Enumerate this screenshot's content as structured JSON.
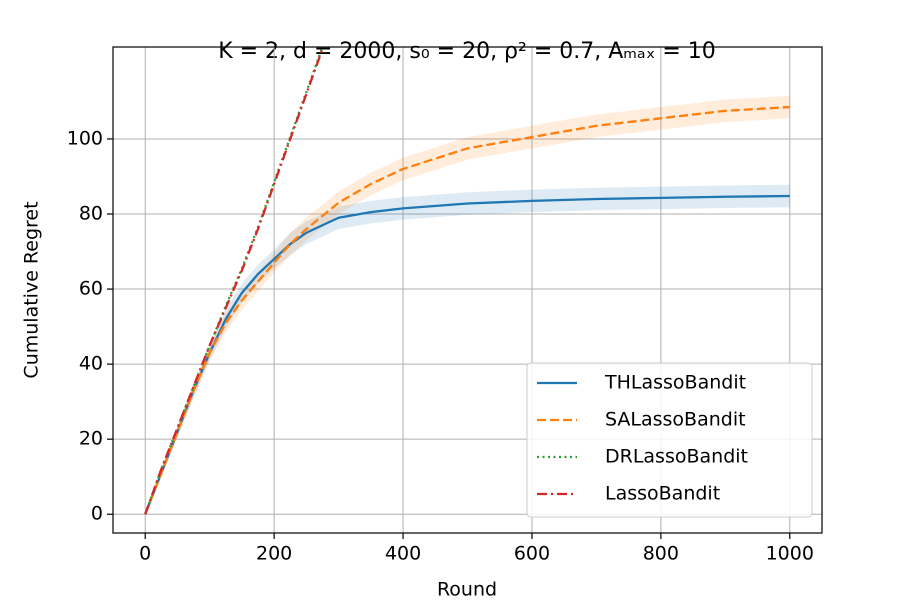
{
  "chart_data": {
    "type": "line",
    "title": "K = 2, d = 2000, s₀ = 20, ρ² = 0.7, Aₘₐₓ = 10",
    "x_label": "Round",
    "y_label": "Cumulative Regret",
    "x": [
      0,
      25,
      50,
      75,
      100,
      125,
      150,
      175,
      200,
      225,
      250,
      275,
      300,
      350,
      400,
      500,
      600,
      700,
      800,
      900,
      1000
    ],
    "series": [
      {
        "name": "THLassoBandit",
        "color": "#1f77b4",
        "linestyle": "solid",
        "values": [
          0,
          11,
          22,
          33,
          43,
          52,
          59,
          64,
          68,
          72,
          75,
          77,
          79,
          80.5,
          81.5,
          82.8,
          83.5,
          84,
          84.3,
          84.6,
          84.8
        ],
        "lower": [
          0,
          10,
          20.5,
          31,
          41,
          49.5,
          56.5,
          61.5,
          65.5,
          69,
          72,
          74,
          76,
          77.5,
          78.5,
          79.8,
          80.5,
          81,
          81.3,
          81.6,
          81.8
        ],
        "upper": [
          0,
          12,
          23.5,
          35,
          45,
          54.5,
          61.5,
          66.5,
          70.5,
          75,
          78,
          80,
          82,
          83.5,
          84.5,
          85.8,
          86.5,
          87,
          87.3,
          87.6,
          87.8
        ]
      },
      {
        "name": "SALassoBandit",
        "color": "#ff7f0e",
        "linestyle": "dashed",
        "values": [
          0,
          11,
          22,
          33,
          43,
          51,
          57,
          62,
          67,
          72,
          76,
          79.5,
          83,
          88,
          92,
          97.5,
          100.5,
          103.5,
          105.5,
          107.5,
          108.5
        ],
        "lower": [
          0,
          10,
          20.5,
          31,
          41,
          48.5,
          54.5,
          59.5,
          64.5,
          69,
          73,
          76.5,
          80,
          85,
          89,
          94.5,
          97.5,
          100.5,
          102.5,
          104.5,
          105.5
        ],
        "upper": [
          0,
          12,
          23.5,
          35,
          45,
          53.5,
          59.5,
          64.5,
          69.5,
          75,
          79,
          82.5,
          86,
          91,
          95,
          100.5,
          103.5,
          106.5,
          108.5,
          110.5,
          111.5
        ]
      },
      {
        "name": "DRLassoBandit",
        "color": "#2ca02c",
        "linestyle": "dotted",
        "values": [
          0,
          12,
          23,
          34,
          45,
          55.5,
          65.5,
          76.5,
          88.5,
          100.5,
          112.5,
          124.5,
          null,
          null,
          null,
          null,
          null,
          null,
          null,
          null,
          null
        ]
      },
      {
        "name": "LassoBandit",
        "color": "#d62728",
        "linestyle": "dashdot",
        "values": [
          0,
          12,
          23,
          34,
          45,
          55,
          65,
          76,
          88,
          100,
          112,
          124,
          null,
          null,
          null,
          null,
          null,
          null,
          null,
          null,
          null
        ]
      }
    ],
    "xlim": [
      -50,
      1050
    ],
    "ylim": [
      -5,
      124.5
    ],
    "xticks": [
      0,
      200,
      400,
      600,
      800,
      1000
    ],
    "yticks": [
      0,
      20,
      40,
      60,
      80,
      100
    ],
    "grid": true,
    "legend": "lower right"
  }
}
